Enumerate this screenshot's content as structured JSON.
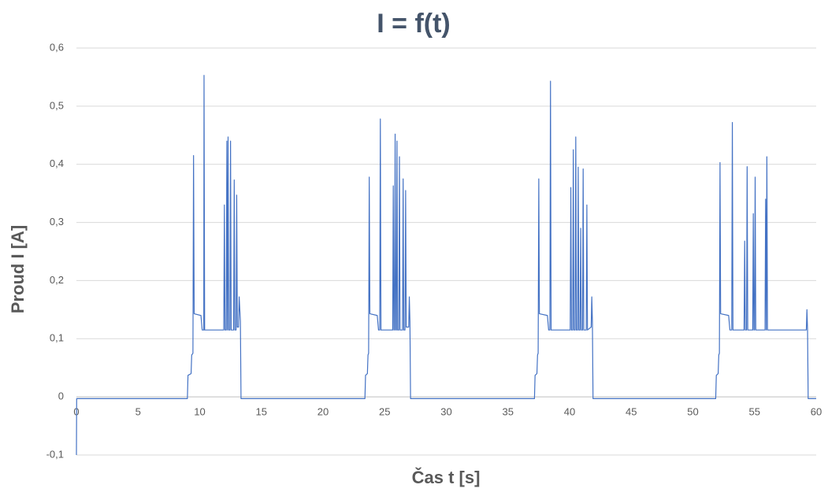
{
  "chart_data": {
    "type": "line",
    "title": "I = f(t)",
    "x_label": "Čas t [s]",
    "y_label": "Proud I [A]",
    "xlim": [
      0,
      60
    ],
    "xticks": [
      0,
      5,
      10,
      15,
      20,
      25,
      30,
      35,
      40,
      45,
      50,
      55,
      60
    ],
    "ylim": [
      -0.1,
      0.6
    ],
    "yticks": [
      {
        "value": -0.1,
        "label": "-0,1"
      },
      0,
      {
        "value": 0.1,
        "label": "0,1"
      },
      {
        "value": 0.2,
        "label": "0,2"
      },
      {
        "value": 0.3,
        "label": "0,3"
      },
      {
        "value": 0.4,
        "label": "0,4"
      },
      {
        "value": 0.5,
        "label": "0,5"
      },
      {
        "value": 0.6,
        "label": "0,6"
      }
    ],
    "grid": true,
    "x": [
      0,
      0.02,
      9.0,
      9.05,
      9.3,
      9.35,
      9.45,
      9.5,
      9.55,
      10.1,
      10.2,
      10.33,
      10.35,
      10.4,
      11.95,
      12.0,
      12.05,
      12.15,
      12.2,
      12.25,
      12.3,
      12.35,
      12.45,
      12.5,
      12.55,
      12.75,
      12.8,
      12.85,
      12.95,
      13.0,
      13.05,
      13.15,
      13.2,
      13.3,
      13.35,
      23.4,
      23.45,
      23.6,
      23.65,
      23.7,
      23.75,
      23.8,
      24.4,
      24.5,
      24.6,
      24.65,
      24.7,
      25.65,
      25.7,
      25.75,
      25.8,
      25.85,
      25.9,
      25.95,
      26.0,
      26.05,
      26.15,
      26.2,
      26.25,
      26.45,
      26.5,
      26.55,
      26.65,
      26.7,
      26.75,
      26.95,
      27.0,
      27.05,
      27.1,
      37.15,
      37.2,
      37.35,
      37.4,
      37.45,
      37.5,
      37.55,
      38.2,
      38.3,
      38.4,
      38.45,
      38.5,
      40.05,
      40.1,
      40.15,
      40.25,
      40.3,
      40.35,
      40.45,
      40.5,
      40.55,
      40.65,
      40.7,
      40.75,
      40.85,
      40.9,
      40.95,
      41.05,
      41.1,
      41.15,
      41.35,
      41.4,
      41.45,
      41.75,
      41.8,
      41.85,
      41.9,
      51.85,
      51.9,
      52.05,
      52.1,
      52.15,
      52.2,
      52.25,
      52.9,
      53.0,
      53.15,
      53.2,
      53.25,
      54.15,
      54.2,
      54.25,
      54.35,
      54.4,
      54.45,
      54.85,
      54.9,
      54.95,
      55.0,
      55.05,
      55.1,
      55.85,
      55.9,
      55.95,
      56.0,
      56.05,
      59.2,
      59.25,
      59.3,
      59.35,
      60
    ],
    "series": [
      {
        "color": "#4472c4",
        "values": [
          -0.1,
          -0.003,
          -0.003,
          0.037,
          0.04,
          0.072,
          0.075,
          0.415,
          0.143,
          0.14,
          0.115,
          0.115,
          0.553,
          0.115,
          0.115,
          0.33,
          0.115,
          0.115,
          0.44,
          0.115,
          0.447,
          0.115,
          0.115,
          0.44,
          0.115,
          0.115,
          0.373,
          0.115,
          0.115,
          0.347,
          0.12,
          0.12,
          0.172,
          0.13,
          -0.003,
          -0.003,
          0.037,
          0.04,
          0.072,
          0.075,
          0.378,
          0.143,
          0.14,
          0.115,
          0.115,
          0.478,
          0.115,
          0.115,
          0.363,
          0.115,
          0.115,
          0.452,
          0.115,
          0.115,
          0.44,
          0.115,
          0.115,
          0.413,
          0.115,
          0.115,
          0.375,
          0.115,
          0.115,
          0.355,
          0.12,
          0.12,
          0.172,
          0.13,
          -0.003,
          -0.003,
          0.037,
          0.04,
          0.072,
          0.075,
          0.375,
          0.143,
          0.14,
          0.115,
          0.115,
          0.543,
          0.115,
          0.115,
          0.36,
          0.115,
          0.115,
          0.425,
          0.115,
          0.115,
          0.447,
          0.115,
          0.115,
          0.395,
          0.115,
          0.115,
          0.29,
          0.115,
          0.115,
          0.392,
          0.115,
          0.115,
          0.33,
          0.115,
          0.12,
          0.172,
          0.13,
          -0.003,
          -0.003,
          0.037,
          0.04,
          0.072,
          0.075,
          0.403,
          0.143,
          0.14,
          0.115,
          0.115,
          0.472,
          0.115,
          0.115,
          0.268,
          0.115,
          0.115,
          0.396,
          0.115,
          0.115,
          0.315,
          0.115,
          0.115,
          0.378,
          0.115,
          0.115,
          0.34,
          0.115,
          0.413,
          0.115,
          0.115,
          0.15,
          0.115,
          -0.003,
          -0.003
        ]
      }
    ]
  }
}
